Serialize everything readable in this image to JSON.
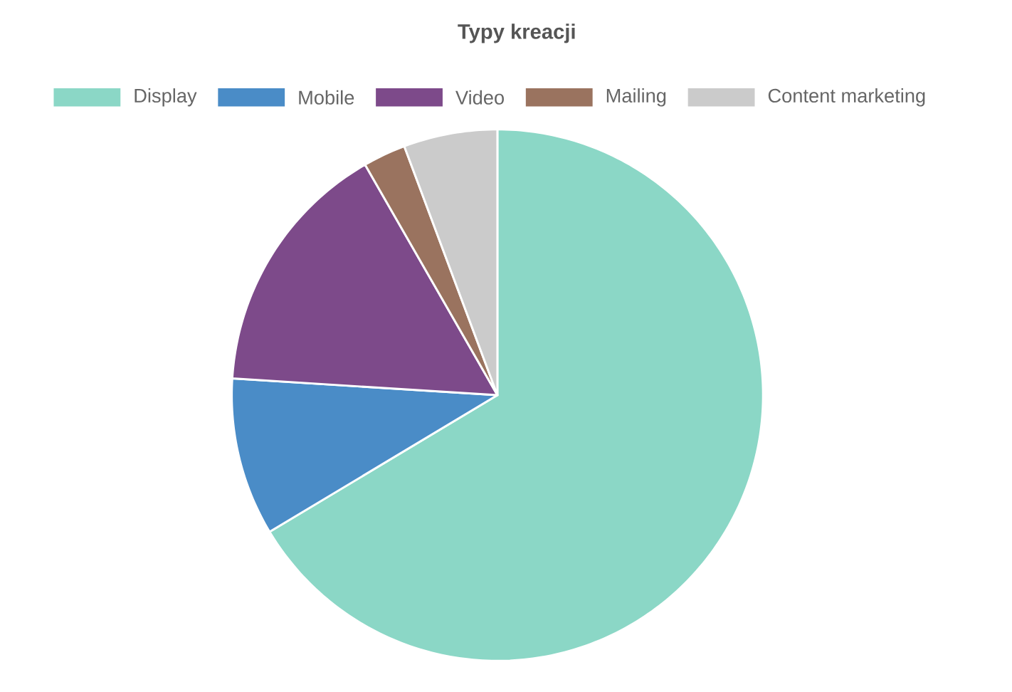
{
  "chart_data": {
    "type": "pie",
    "title": "Typy kreacji",
    "categories": [
      "Display",
      "Mobile",
      "Video",
      "Mailing",
      "Content marketing"
    ],
    "values": [
      66.4,
      9.6,
      15.7,
      2.6,
      5.7
    ],
    "colors": [
      "#8bd7c6",
      "#4a8cc7",
      "#7d4a8a",
      "#9a735f",
      "#cbcbcb"
    ],
    "legend": "top"
  }
}
